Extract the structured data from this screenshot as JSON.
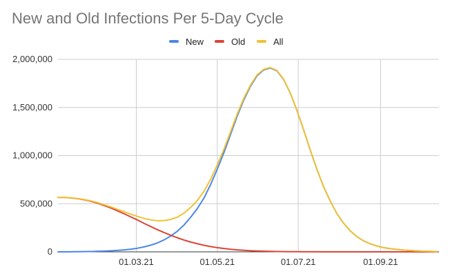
{
  "chart_data": {
    "type": "line",
    "title": "New and Old Infections Per 5-Day Cycle",
    "xlabel": "",
    "ylabel": "",
    "x_type": "date",
    "x_range": [
      "2021-01-01",
      "2021-10-15"
    ],
    "x_ticks": [
      {
        "date": "2021-03-01",
        "label": "01.03.21"
      },
      {
        "date": "2021-05-01",
        "label": "01.05.21"
      },
      {
        "date": "2021-07-01",
        "label": "01.07.21"
      },
      {
        "date": "2021-09-01",
        "label": "01.09.21"
      }
    ],
    "ylim": [
      0,
      2000000
    ],
    "y_ticks": [
      {
        "value": 0,
        "label": "0"
      },
      {
        "value": 500000,
        "label": "500,000"
      },
      {
        "value": 1000000,
        "label": "1,000,000"
      },
      {
        "value": 1500000,
        "label": "1,500,000"
      },
      {
        "value": 2000000,
        "label": "2,000,000"
      }
    ],
    "grid": true,
    "legend_position": "top-center",
    "x": [
      "2021-01-01",
      "2021-01-06",
      "2021-01-11",
      "2021-01-16",
      "2021-01-21",
      "2021-01-26",
      "2021-01-31",
      "2021-02-05",
      "2021-02-10",
      "2021-02-15",
      "2021-02-20",
      "2021-02-25",
      "2021-03-02",
      "2021-03-07",
      "2021-03-12",
      "2021-03-17",
      "2021-03-22",
      "2021-03-27",
      "2021-04-01",
      "2021-04-06",
      "2021-04-11",
      "2021-04-16",
      "2021-04-21",
      "2021-04-26",
      "2021-05-01",
      "2021-05-06",
      "2021-05-11",
      "2021-05-16",
      "2021-05-21",
      "2021-05-26",
      "2021-05-31",
      "2021-06-05",
      "2021-06-10",
      "2021-06-15",
      "2021-06-20",
      "2021-06-25",
      "2021-06-30",
      "2021-07-05",
      "2021-07-10",
      "2021-07-15",
      "2021-07-20",
      "2021-07-25",
      "2021-07-30",
      "2021-08-04",
      "2021-08-09",
      "2021-08-14",
      "2021-08-19",
      "2021-08-24",
      "2021-08-29",
      "2021-09-03",
      "2021-09-08",
      "2021-09-13",
      "2021-09-18",
      "2021-09-23",
      "2021-09-28",
      "2021-10-03",
      "2021-10-08",
      "2021-10-13"
    ],
    "series": [
      {
        "name": "New",
        "color": "#4a86e8",
        "values": [
          0,
          0,
          1000,
          2000,
          3000,
          4000,
          6000,
          8000,
          11000,
          15000,
          21000,
          28000,
          38000,
          52000,
          70000,
          93000,
          125000,
          165000,
          215000,
          280000,
          360000,
          450000,
          560000,
          700000,
          860000,
          1030000,
          1220000,
          1410000,
          1580000,
          1720000,
          1830000,
          1890000,
          1910000,
          1880000,
          1790000,
          1650000,
          1470000,
          1270000,
          1060000,
          860000,
          680000,
          530000,
          400000,
          300000,
          220000,
          160000,
          115000,
          85000,
          62000,
          45000,
          34000,
          25000,
          19000,
          14000,
          10000,
          7000,
          5000,
          3000
        ]
      },
      {
        "name": "Old",
        "color": "#db4437",
        "values": [
          565000,
          565000,
          560000,
          552000,
          540000,
          525000,
          505000,
          480000,
          455000,
          425000,
          395000,
          362000,
          330000,
          295000,
          262000,
          230000,
          200000,
          172000,
          146000,
          122000,
          102000,
          84000,
          68000,
          55000,
          44000,
          35000,
          27000,
          21000,
          16000,
          12000,
          9000,
          7000,
          5000,
          4000,
          3000,
          2000,
          1500,
          1000,
          800,
          600,
          400,
          300,
          200,
          100,
          100,
          50,
          50,
          0,
          0,
          0,
          0,
          0,
          0,
          0,
          0,
          0,
          0,
          0
        ]
      },
      {
        "name": "All",
        "color": "#f1c232",
        "values": [
          565000,
          565000,
          561000,
          554000,
          543000,
          529000,
          511000,
          488000,
          466000,
          440000,
          416000,
          390000,
          368000,
          347000,
          332000,
          323000,
          325000,
          337000,
          361000,
          402000,
          462000,
          534000,
          628000,
          755000,
          904000,
          1065000,
          1247000,
          1431000,
          1596000,
          1732000,
          1839000,
          1897000,
          1915000,
          1884000,
          1793000,
          1652000,
          1471500,
          1271000,
          1060800,
          860600,
          680400,
          530300,
          400200,
          300100,
          220100,
          160050,
          115050,
          85000,
          62000,
          45000,
          34000,
          25000,
          19000,
          14000,
          10000,
          7000,
          5000,
          3000
        ]
      }
    ]
  }
}
